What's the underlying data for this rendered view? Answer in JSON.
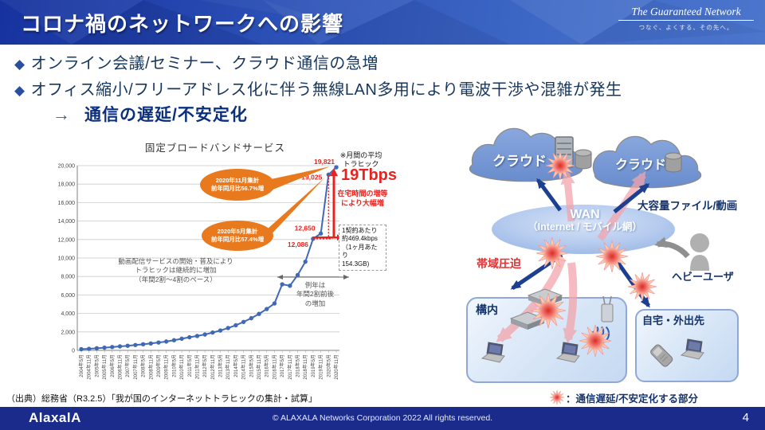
{
  "header": {
    "title": "コロナ禍のネットワークへの影響",
    "brand": "The Guaranteed Network",
    "brand_tagline": "つなぐ、よくする、その先へ。"
  },
  "bullets": [
    {
      "marker": "◆",
      "text": "オンライン会議/セミナー、クラウド通信の急増"
    },
    {
      "marker": "◆",
      "text": "オフィス縮小/フリーアドレス化に伴う無線LAN多用により電波干渉や混雑が発生"
    }
  ],
  "arrow_line": {
    "arrow": "→",
    "text": "通信の遅延/不安定化"
  },
  "chart_data": {
    "type": "line",
    "title": "固定ブロードバンドサービス",
    "categories": [
      "2004年5月",
      "2004年11月",
      "2005年5月",
      "2005年11月",
      "2006年5月",
      "2006年11月",
      "2007年5月",
      "2007年11月",
      "2008年5月",
      "2008年11月",
      "2009年5月",
      "2009年11月",
      "2010年5月",
      "2010年11月",
      "2011年5月",
      "2011年11月",
      "2012年5月",
      "2012年11月",
      "2013年5月",
      "2013年11月",
      "2014年5月",
      "2014年11月",
      "2015年5月",
      "2015年11月",
      "2016年5月",
      "2016年11月",
      "2017年5月",
      "2017年11月",
      "2018年5月",
      "2018年11月",
      "2019年5月",
      "2019年11月",
      "2020年5月",
      "2020年11月"
    ],
    "values": [
      130,
      170,
      230,
      290,
      360,
      430,
      500,
      580,
      660,
      750,
      850,
      960,
      1100,
      1260,
      1420,
      1560,
      1720,
      1930,
      2150,
      2420,
      2720,
      3080,
      3480,
      3950,
      4480,
      5080,
      7150,
      7000,
      8150,
      9600,
      12086,
      12650,
      19025,
      19821
    ],
    "ylim": [
      0,
      20000
    ],
    "ytick_step": 2000,
    "grid": "horizontal",
    "legend_position": "none",
    "point_labels": [
      {
        "index": 33,
        "text": "19,821"
      },
      {
        "index": 32,
        "text": "19,025"
      },
      {
        "index": 31,
        "text": "12,650"
      },
      {
        "index": 30,
        "text": "12,086"
      }
    ],
    "callouts": [
      {
        "lines": [
          "2020年11月集計",
          "前年同月比56.7%増"
        ],
        "target_index": 33
      },
      {
        "lines": [
          "2020年5月集計",
          "前年同月比57.4%増"
        ],
        "target_index": 32
      }
    ],
    "notes": {
      "video_services": "動画配信サービスの開始・普及により\nトラヒックは継続的に増加\n（年間2割～4割のペース）",
      "normal_year": "例年は\n年間2割前後\nの増加"
    },
    "side_annotations": {
      "monthly_avg": "※月間の平均\nトラヒック",
      "big_value": "19Tbps",
      "reason": "在宅時間の増等\nにより大幅増",
      "per_contract": "1契約あたり\n約469.4kbps\n（1ヶ月あたり\n154.3GB)"
    }
  },
  "diagram": {
    "cloud1_label": "クラウド",
    "cloud2_label": "クラウド",
    "wan_label": "WAN",
    "wan_sub_label": "（Internet / モバイル網）",
    "big_file_label": "大容量ファイル/動画",
    "bandwidth_label": "帯域圧迫",
    "premises_label": "構内",
    "home_label": "自宅・外出先",
    "heavy_user_label": "ヘビーユーザ",
    "legend_text": "：通信遅延/不安定化する部分",
    "icons": {
      "burst": "burst-star",
      "cloud": "cloud-shape",
      "server": "server-rack",
      "database": "db-cylinder",
      "switch": "network-switch",
      "access_point": "wireless-ap",
      "wifi": "wifi-waves",
      "laptop": "laptop-pc",
      "phone": "mobile-phone",
      "person": "user-silhouette"
    }
  },
  "source_line": "（出典）総務省（R3.2.5）「我が国のインターネットトラヒックの集計・試算」",
  "footer": {
    "logo": "AlaxalA",
    "copyright": "© ALAXALA Networks Corporation 2022 All rights reserved.",
    "page": "4"
  },
  "colors": {
    "accent_navy": "#17375E",
    "line_blue": "#3F68B5",
    "callout_orange": "#E8791D",
    "alert_red": "#E8231F",
    "footer_navy": "#1B2B8C"
  }
}
